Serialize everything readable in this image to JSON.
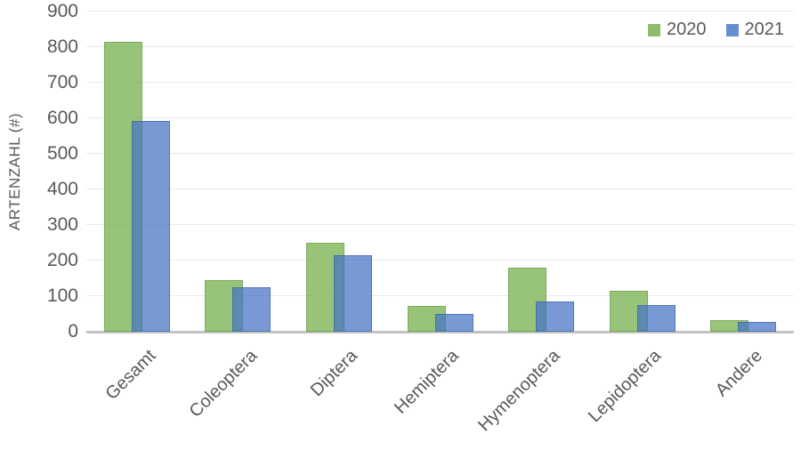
{
  "chart_data": {
    "type": "bar",
    "title": "",
    "xlabel": "",
    "ylabel": "ARTENZAHL (#)",
    "categories": [
      "Gesamt",
      "Coleoptera",
      "Diptera",
      "Hemiptera",
      "Hymenoptera",
      "Lepidoptera",
      "Andere"
    ],
    "series": [
      {
        "name": "2020",
        "color": "#70AD47",
        "values": [
          816,
          146,
          249,
          73,
          180,
          114,
          33
        ]
      },
      {
        "name": "2021",
        "color": "#4472C4",
        "values": [
          592,
          125,
          214,
          51,
          85,
          74,
          28
        ]
      }
    ],
    "ylim": [
      0,
      900
    ],
    "ytick_step": 100,
    "grid": true,
    "legend_position": "top-right",
    "bar_opacity": 0.72,
    "bars_overlap": true
  },
  "colors": {
    "series_2020": "#70AD47",
    "series_2021": "#4472C4",
    "axis_text": "#595959",
    "gridline": "#E9E9E9",
    "axis_line": "#C3C3C3",
    "background": "#FFFFFF"
  }
}
